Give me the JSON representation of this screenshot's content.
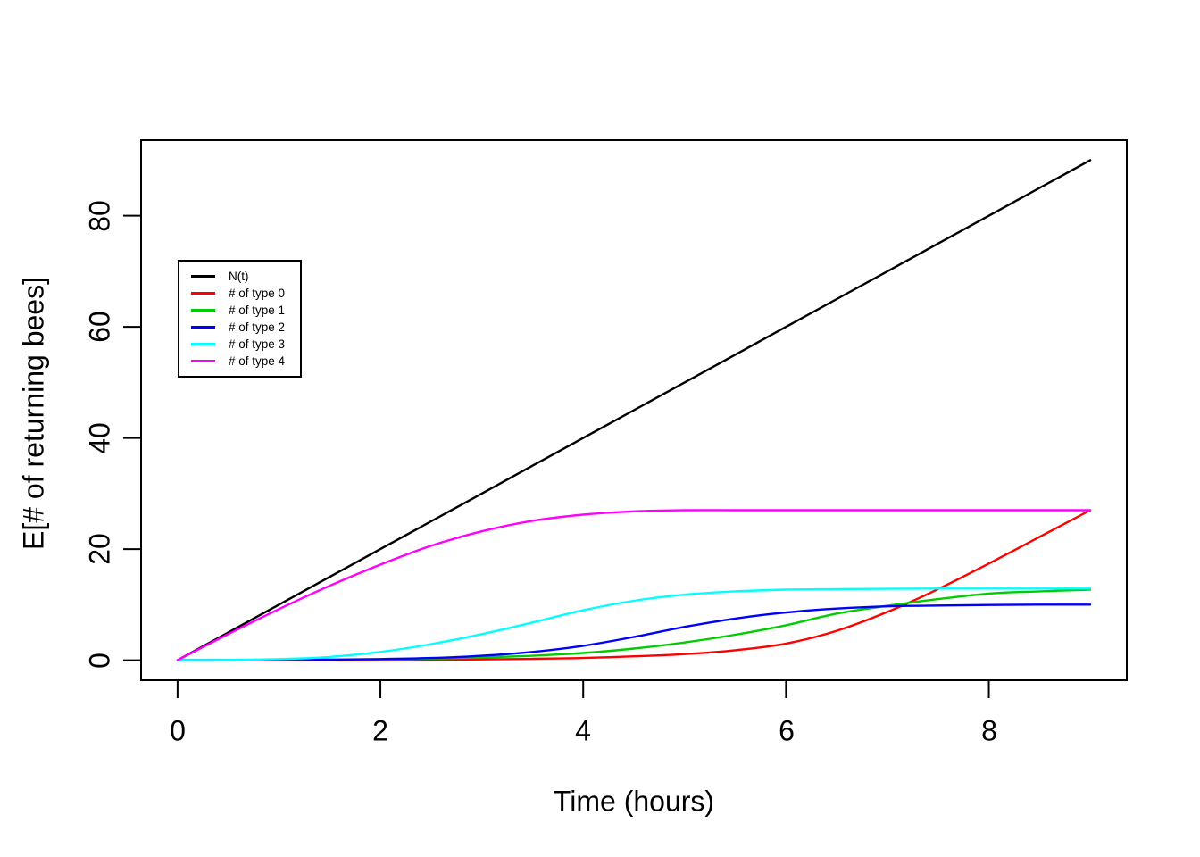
{
  "chart_data": {
    "type": "line",
    "title": "",
    "xlabel": "Time (hours)",
    "ylabel": "E[# of returning bees]",
    "x_ticks": [
      0,
      2,
      4,
      6,
      8
    ],
    "y_ticks": [
      0,
      20,
      40,
      60,
      80
    ],
    "xlim": [
      -0.36,
      9.36
    ],
    "ylim": [
      -3.6,
      93.6
    ],
    "grid": "off",
    "legend_position": "upper-left-inside",
    "x": [
      0,
      0.5,
      1,
      1.5,
      2,
      2.5,
      3,
      3.5,
      4,
      4.5,
      5,
      5.5,
      6,
      6.5,
      7,
      7.5,
      8,
      8.5,
      9
    ],
    "series": [
      {
        "label": "N(t)",
        "color": "#000000",
        "values": [
          0,
          5,
          10,
          15,
          20,
          25,
          30,
          35,
          40,
          45,
          50,
          55,
          60,
          65,
          70,
          75,
          80,
          85,
          90
        ]
      },
      {
        "label": "# of type 0",
        "color": "#FF0000",
        "values": [
          0,
          0,
          0,
          0,
          0.05,
          0.1,
          0.15,
          0.25,
          0.4,
          0.7,
          1.1,
          1.8,
          3.0,
          5.3,
          8.7,
          12.8,
          17.4,
          22.2,
          27
        ]
      },
      {
        "label": "# of type 1",
        "color": "#00CC00",
        "values": [
          0,
          0,
          0.05,
          0.1,
          0.15,
          0.3,
          0.5,
          0.8,
          1.3,
          2.1,
          3.2,
          4.6,
          6.3,
          8.4,
          9.8,
          11.0,
          12.0,
          12.4,
          12.7
        ]
      },
      {
        "label": "# of type 2",
        "color": "#0000FF",
        "values": [
          0,
          0,
          0.05,
          0.1,
          0.2,
          0.4,
          0.8,
          1.5,
          2.6,
          4.2,
          6.0,
          7.5,
          8.6,
          9.3,
          9.7,
          9.85,
          9.95,
          10,
          10
        ]
      },
      {
        "label": "# of type 3",
        "color": "#00FFFF",
        "values": [
          0,
          0.05,
          0.2,
          0.6,
          1.5,
          2.9,
          4.7,
          6.8,
          9.0,
          10.7,
          11.8,
          12.4,
          12.7,
          12.8,
          12.85,
          12.9,
          12.9,
          12.9,
          12.9
        ]
      },
      {
        "label": "# of type 4",
        "color": "#FF00FF",
        "values": [
          0,
          4.7,
          9.2,
          13.4,
          17.2,
          20.6,
          23.2,
          25.1,
          26.2,
          26.8,
          27,
          27,
          27,
          27,
          27,
          27,
          27,
          27,
          27
        ]
      }
    ]
  }
}
